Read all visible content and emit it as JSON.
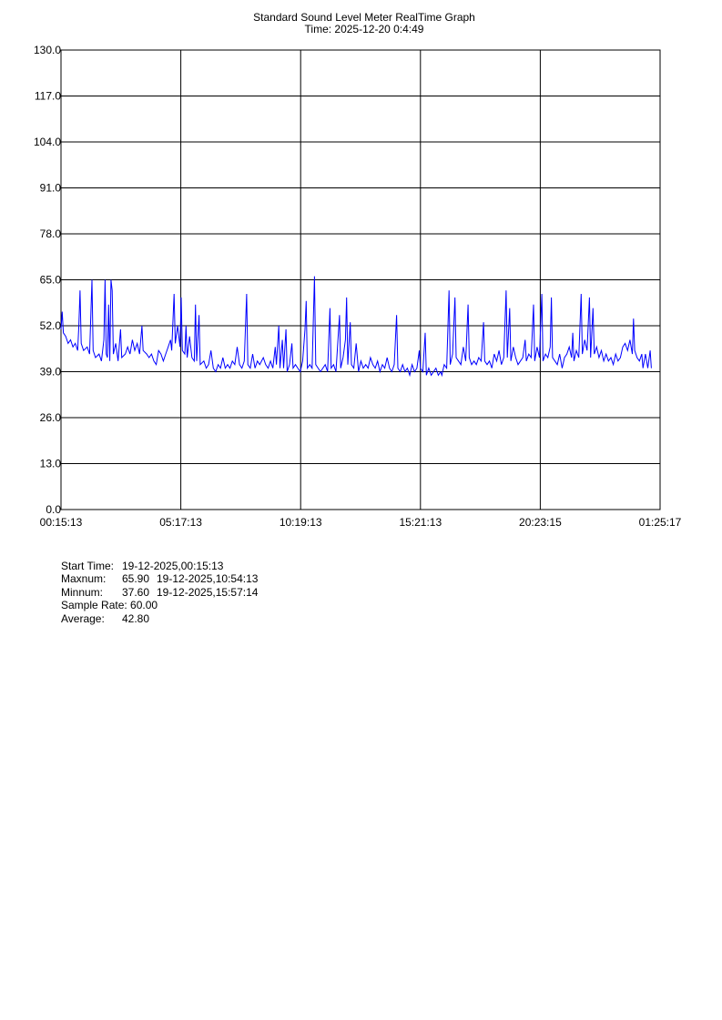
{
  "chart_data": {
    "type": "line",
    "title": "Standard Sound Level Meter RealTime Graph",
    "subtitle": "Time: 2025-12-20  0:4:49",
    "xlabel": "",
    "ylabel": "",
    "ylim": [
      0,
      130
    ],
    "y_ticks": [
      "130.0",
      "117.0",
      "104.0",
      "91.0",
      "78.0",
      "65.0",
      "52.0",
      "39.0",
      "26.0",
      "13.0",
      "0.0"
    ],
    "x_ticks": [
      "00:15:13",
      "05:17:13",
      "10:19:13",
      "15:21:13",
      "20:23:15",
      "01:25:17"
    ],
    "x_unit": "hours since 00:15:13",
    "xlim": [
      0,
      25.1672
    ],
    "grid": true,
    "line_color": "#0000ff",
    "series": [
      {
        "values": [
          [
            0.0,
            51
          ],
          [
            0.05,
            56
          ],
          [
            0.1,
            50
          ],
          [
            0.2,
            49
          ],
          [
            0.3,
            47
          ],
          [
            0.4,
            48
          ],
          [
            0.5,
            46
          ],
          [
            0.6,
            47
          ],
          [
            0.7,
            45
          ],
          [
            0.75,
            52
          ],
          [
            0.8,
            62
          ],
          [
            0.85,
            47
          ],
          [
            0.95,
            45
          ],
          [
            1.1,
            46
          ],
          [
            1.2,
            44
          ],
          [
            1.3,
            65
          ],
          [
            1.35,
            45
          ],
          [
            1.45,
            43
          ],
          [
            1.6,
            44
          ],
          [
            1.7,
            42
          ],
          [
            1.8,
            48
          ],
          [
            1.85,
            65
          ],
          [
            1.9,
            44
          ],
          [
            1.95,
            43
          ],
          [
            2.0,
            58
          ],
          [
            2.05,
            42
          ],
          [
            2.1,
            65
          ],
          [
            2.15,
            62
          ],
          [
            2.2,
            44
          ],
          [
            2.3,
            47
          ],
          [
            2.4,
            42
          ],
          [
            2.5,
            51
          ],
          [
            2.55,
            43
          ],
          [
            2.7,
            44
          ],
          [
            2.8,
            46
          ],
          [
            2.9,
            44
          ],
          [
            3.0,
            48
          ],
          [
            3.1,
            45
          ],
          [
            3.2,
            47
          ],
          [
            3.3,
            44
          ],
          [
            3.4,
            52
          ],
          [
            3.45,
            45
          ],
          [
            3.6,
            44
          ],
          [
            3.7,
            43
          ],
          [
            3.8,
            44
          ],
          [
            3.9,
            42
          ],
          [
            4.0,
            41
          ],
          [
            4.1,
            45
          ],
          [
            4.2,
            44
          ],
          [
            4.3,
            42
          ],
          [
            4.4,
            44
          ],
          [
            4.5,
            46
          ],
          [
            4.6,
            48
          ],
          [
            4.65,
            45
          ],
          [
            4.75,
            61
          ],
          [
            4.8,
            47
          ],
          [
            4.9,
            52
          ],
          [
            5.0,
            46
          ],
          [
            5.05,
            60
          ],
          [
            5.1,
            45
          ],
          [
            5.2,
            44
          ],
          [
            5.25,
            52
          ],
          [
            5.3,
            43
          ],
          [
            5.4,
            49
          ],
          [
            5.5,
            43
          ],
          [
            5.6,
            42
          ],
          [
            5.65,
            58
          ],
          [
            5.7,
            42
          ],
          [
            5.8,
            55
          ],
          [
            5.85,
            41
          ],
          [
            6.0,
            42
          ],
          [
            6.1,
            40
          ],
          [
            6.2,
            41
          ],
          [
            6.3,
            45
          ],
          [
            6.4,
            40
          ],
          [
            6.5,
            39
          ],
          [
            6.6,
            41
          ],
          [
            6.7,
            40
          ],
          [
            6.8,
            43
          ],
          [
            6.9,
            40
          ],
          [
            7.0,
            41
          ],
          [
            7.1,
            40
          ],
          [
            7.2,
            42
          ],
          [
            7.3,
            41
          ],
          [
            7.4,
            46
          ],
          [
            7.5,
            41
          ],
          [
            7.6,
            40
          ],
          [
            7.7,
            42
          ],
          [
            7.8,
            61
          ],
          [
            7.85,
            41
          ],
          [
            7.95,
            40
          ],
          [
            8.05,
            44
          ],
          [
            8.15,
            40
          ],
          [
            8.25,
            42
          ],
          [
            8.35,
            41
          ],
          [
            8.5,
            43
          ],
          [
            8.6,
            41
          ],
          [
            8.7,
            40
          ],
          [
            8.8,
            42
          ],
          [
            8.9,
            40
          ],
          [
            9.0,
            46
          ],
          [
            9.05,
            41
          ],
          [
            9.15,
            52
          ],
          [
            9.2,
            40
          ],
          [
            9.3,
            48
          ],
          [
            9.35,
            40
          ],
          [
            9.45,
            51
          ],
          [
            9.5,
            39
          ],
          [
            9.6,
            41
          ],
          [
            9.7,
            47
          ],
          [
            9.75,
            40
          ],
          [
            9.85,
            41
          ],
          [
            9.95,
            40
          ],
          [
            10.05,
            39
          ],
          [
            10.15,
            42
          ],
          [
            10.25,
            51
          ],
          [
            10.3,
            59
          ],
          [
            10.35,
            40
          ],
          [
            10.45,
            41
          ],
          [
            10.55,
            40
          ],
          [
            10.65,
            66
          ],
          [
            10.7,
            41
          ],
          [
            10.8,
            40
          ],
          [
            10.9,
            39
          ],
          [
            11.0,
            40
          ],
          [
            11.1,
            41
          ],
          [
            11.2,
            39
          ],
          [
            11.3,
            57
          ],
          [
            11.35,
            40
          ],
          [
            11.45,
            41
          ],
          [
            11.55,
            39
          ],
          [
            11.7,
            55
          ],
          [
            11.75,
            40
          ],
          [
            11.85,
            43
          ],
          [
            11.95,
            48
          ],
          [
            12.0,
            60
          ],
          [
            12.05,
            41
          ],
          [
            12.15,
            53
          ],
          [
            12.2,
            41
          ],
          [
            12.3,
            40
          ],
          [
            12.4,
            47
          ],
          [
            12.5,
            39
          ],
          [
            12.6,
            42
          ],
          [
            12.7,
            40
          ],
          [
            12.8,
            41
          ],
          [
            12.9,
            40
          ],
          [
            13.0,
            43
          ],
          [
            13.1,
            41
          ],
          [
            13.2,
            40
          ],
          [
            13.3,
            42
          ],
          [
            13.4,
            39
          ],
          [
            13.5,
            41
          ],
          [
            13.6,
            40
          ],
          [
            13.7,
            43
          ],
          [
            13.8,
            40
          ],
          [
            13.9,
            39
          ],
          [
            14.0,
            41
          ],
          [
            14.1,
            55
          ],
          [
            14.15,
            40
          ],
          [
            14.25,
            39
          ],
          [
            14.35,
            41
          ],
          [
            14.45,
            39
          ],
          [
            14.55,
            40
          ],
          [
            14.65,
            38
          ],
          [
            14.75,
            41
          ],
          [
            14.85,
            39
          ],
          [
            14.95,
            40
          ],
          [
            15.05,
            45
          ],
          [
            15.1,
            40
          ],
          [
            15.2,
            39
          ],
          [
            15.3,
            50
          ],
          [
            15.35,
            38
          ],
          [
            15.45,
            40
          ],
          [
            15.55,
            38
          ],
          [
            15.65,
            39
          ],
          [
            15.75,
            40
          ],
          [
            15.85,
            38
          ],
          [
            15.95,
            39
          ],
          [
            16.0,
            38
          ],
          [
            16.1,
            41
          ],
          [
            16.2,
            40
          ],
          [
            16.3,
            62
          ],
          [
            16.35,
            41
          ],
          [
            16.45,
            44
          ],
          [
            16.55,
            60
          ],
          [
            16.6,
            43
          ],
          [
            16.7,
            42
          ],
          [
            16.8,
            41
          ],
          [
            16.9,
            46
          ],
          [
            17.0,
            42
          ],
          [
            17.1,
            58
          ],
          [
            17.15,
            43
          ],
          [
            17.25,
            41
          ],
          [
            17.35,
            42
          ],
          [
            17.45,
            41
          ],
          [
            17.55,
            43
          ],
          [
            17.65,
            42
          ],
          [
            17.75,
            53
          ],
          [
            17.8,
            42
          ],
          [
            17.9,
            41
          ],
          [
            18.0,
            42
          ],
          [
            18.1,
            40
          ],
          [
            18.2,
            44
          ],
          [
            18.3,
            42
          ],
          [
            18.4,
            45
          ],
          [
            18.5,
            41
          ],
          [
            18.6,
            43
          ],
          [
            18.7,
            62
          ],
          [
            18.75,
            43
          ],
          [
            18.85,
            57
          ],
          [
            18.9,
            42
          ],
          [
            19.0,
            46
          ],
          [
            19.1,
            43
          ],
          [
            19.2,
            41
          ],
          [
            19.3,
            42
          ],
          [
            19.4,
            43
          ],
          [
            19.5,
            48
          ],
          [
            19.55,
            42
          ],
          [
            19.65,
            44
          ],
          [
            19.75,
            43
          ],
          [
            19.85,
            58
          ],
          [
            19.9,
            42
          ],
          [
            20.0,
            46
          ],
          [
            20.1,
            43
          ],
          [
            20.2,
            61
          ],
          [
            20.25,
            42
          ],
          [
            20.35,
            44
          ],
          [
            20.45,
            43
          ],
          [
            20.55,
            46
          ],
          [
            20.6,
            60
          ],
          [
            20.65,
            43
          ],
          [
            20.75,
            42
          ],
          [
            20.85,
            41
          ],
          [
            20.95,
            44
          ],
          [
            21.05,
            40
          ],
          [
            21.15,
            43
          ],
          [
            21.25,
            44
          ],
          [
            21.35,
            46
          ],
          [
            21.45,
            43
          ],
          [
            21.5,
            50
          ],
          [
            21.55,
            42
          ],
          [
            21.65,
            45
          ],
          [
            21.75,
            43
          ],
          [
            21.85,
            61
          ],
          [
            21.9,
            44
          ],
          [
            22.0,
            48
          ],
          [
            22.1,
            45
          ],
          [
            22.2,
            60
          ],
          [
            22.25,
            43
          ],
          [
            22.35,
            57
          ],
          [
            22.4,
            44
          ],
          [
            22.5,
            46
          ],
          [
            22.6,
            43
          ],
          [
            22.7,
            45
          ],
          [
            22.8,
            42
          ],
          [
            22.9,
            44
          ],
          [
            23.0,
            42
          ],
          [
            23.1,
            43
          ],
          [
            23.2,
            41
          ],
          [
            23.3,
            44
          ],
          [
            23.4,
            42
          ],
          [
            23.5,
            43
          ],
          [
            23.6,
            46
          ],
          [
            23.7,
            47
          ],
          [
            23.8,
            45
          ],
          [
            23.9,
            48
          ],
          [
            24.0,
            44
          ],
          [
            24.05,
            54
          ],
          [
            24.1,
            45
          ],
          [
            24.2,
            43
          ],
          [
            24.3,
            42
          ],
          [
            24.4,
            44
          ],
          [
            24.45,
            40
          ],
          [
            24.55,
            44
          ],
          [
            24.65,
            40
          ],
          [
            24.75,
            45
          ],
          [
            24.8,
            40
          ]
        ]
      }
    ]
  },
  "stats": {
    "start_time_label": "Start Time:",
    "start_time_value": "19-12-2025,00:15:13",
    "max_label": "Maxnum:",
    "max_value": "65.90",
    "max_time": "19-12-2025,10:54:13",
    "min_label": "Minnum:",
    "min_value": "37.60",
    "min_time": "19-12-2025,15:57:14",
    "rate_label": "Sample Rate:",
    "rate_value": "60.00",
    "avg_label": "Average:",
    "avg_value": "42.80"
  }
}
